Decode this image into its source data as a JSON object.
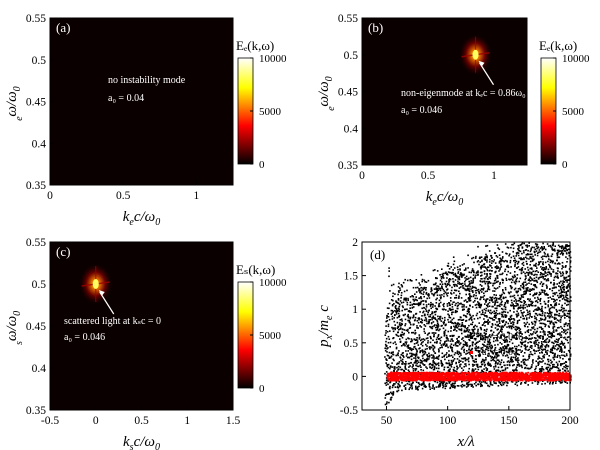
{
  "chart_data": [
    {
      "type": "heatmap",
      "panel_label": "(a)",
      "xlabel_main": "k",
      "xlabel_sub": "e",
      "xlabel_rest": "c/ω",
      "xlabel_rest_sub": "0",
      "ylabel_main": "ω/ω",
      "ylabel_sub": "e",
      "ylabel_rest_sub": "0",
      "xlim": [
        0,
        1.25
      ],
      "ylim": [
        0.35,
        0.55
      ],
      "xticks": [
        0,
        0.5,
        1
      ],
      "xtick_labels": [
        "0",
        "0.5",
        "1"
      ],
      "yticks": [
        0.35,
        0.4,
        0.45,
        0.5,
        0.55
      ],
      "ytick_labels": [
        "0.35",
        "0.4",
        "0.45",
        "0.5",
        "0.55"
      ],
      "colorbar_title": "Eₑ(k,ω)",
      "colorbar_range": [
        0,
        10000
      ],
      "colorbar_ticks": [
        0,
        5000,
        10000
      ],
      "colorbar_tick_labels": [
        "0",
        "5000",
        "10000"
      ],
      "hotspot": null,
      "annotations": [
        "no instability mode",
        "a₀ = 0.04"
      ]
    },
    {
      "type": "heatmap",
      "panel_label": "(b)",
      "xlabel_main": "k",
      "xlabel_sub": "e",
      "xlabel_rest": "c/ω",
      "xlabel_rest_sub": "0",
      "ylabel_main": "ω/ω",
      "ylabel_sub": "e",
      "ylabel_rest_sub": "0",
      "xlim": [
        0,
        1.25
      ],
      "ylim": [
        0.35,
        0.55
      ],
      "xticks": [
        0,
        0.5,
        1
      ],
      "xtick_labels": [
        "0",
        "0.5",
        "1"
      ],
      "yticks": [
        0.35,
        0.4,
        0.45,
        0.5,
        0.55
      ],
      "ytick_labels": [
        "0.35",
        "0.4",
        "0.45",
        "0.5",
        "0.55"
      ],
      "colorbar_title": "Eₑ(k,ω)",
      "colorbar_range": [
        0,
        10000
      ],
      "colorbar_ticks": [
        0,
        5000,
        10000
      ],
      "colorbar_tick_labels": [
        "0",
        "5000",
        "10000"
      ],
      "hotspot": {
        "x": 0.86,
        "y": 0.5
      },
      "annotations": [
        "non-eigenmode at kₑc = 0.86ω₀",
        "a₀ = 0.046"
      ]
    },
    {
      "type": "heatmap",
      "panel_label": "(c)",
      "xlabel_main": "k",
      "xlabel_sub": "s",
      "xlabel_rest": "c/ω",
      "xlabel_rest_sub": "0",
      "ylabel_main": "ω/ω",
      "ylabel_sub": "s",
      "ylabel_rest_sub": "0",
      "xlim": [
        -0.5,
        1.5
      ],
      "ylim": [
        0.35,
        0.55
      ],
      "xticks": [
        -0.5,
        0,
        0.5,
        1,
        1.5
      ],
      "xtick_labels": [
        "-0.5",
        "0",
        "0.5",
        "1",
        "1.5"
      ],
      "yticks": [
        0.35,
        0.4,
        0.45,
        0.5,
        0.55
      ],
      "ytick_labels": [
        "0.35",
        "0.4",
        "0.45",
        "0.5",
        "0.55"
      ],
      "colorbar_title": "Eₛ(k,ω)",
      "colorbar_range": [
        0,
        10000
      ],
      "colorbar_ticks": [
        0,
        5000,
        10000
      ],
      "colorbar_tick_labels": [
        "0",
        "5000",
        "10000"
      ],
      "hotspot": {
        "x": 0.0,
        "y": 0.5
      },
      "annotations": [
        "scattered light at kₛc = 0",
        "a₀ = 0.046"
      ]
    },
    {
      "type": "scatter",
      "panel_label": "(d)",
      "xlabel_main": "x/λ",
      "ylabel_main": "p",
      "ylabel_sub": "x",
      "ylabel_rest": "/m",
      "ylabel_rest_sub": "e",
      "ylabel_tail": "c",
      "xlim": [
        30,
        200
      ],
      "ylim": [
        -0.5,
        2
      ],
      "xticks": [
        50,
        100,
        150,
        200
      ],
      "xtick_labels": [
        "50",
        "100",
        "150",
        "200"
      ],
      "yticks": [
        -0.5,
        0,
        0.5,
        1,
        1.5,
        2
      ],
      "ytick_labels": [
        "-0.5",
        "0",
        "0.5",
        "1",
        "1.5",
        "2"
      ],
      "series": [
        {
          "name": "a₀ = 0.046",
          "color": "#000000",
          "description_points": {
            "x_range": [
              48,
              200
            ],
            "p_range": [
              -0.45,
              2.0
            ]
          }
        },
        {
          "name": "a₀ = 0.04",
          "color": "#ff0000",
          "description_points": {
            "x_range": [
              50,
              200
            ],
            "p_range": [
              -0.05,
              0.07
            ]
          }
        }
      ]
    }
  ]
}
